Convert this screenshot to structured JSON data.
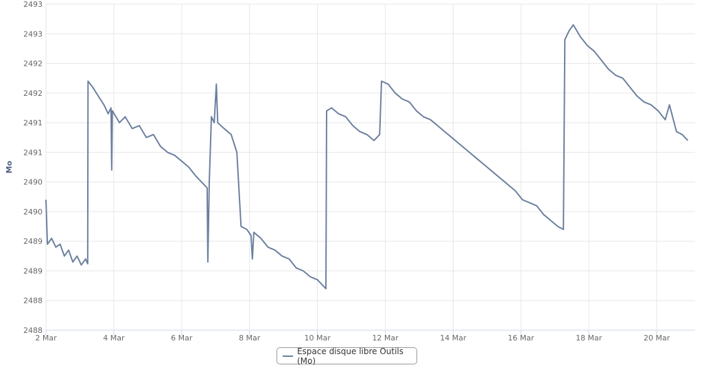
{
  "chart_data": {
    "type": "line",
    "title": "",
    "xlabel": "",
    "ylabel": "Mo",
    "ylim": [
      2488,
      2493.5
    ],
    "y_tick_values": [
      2488,
      2488.5,
      2489,
      2489.5,
      2490,
      2490.5,
      2491,
      2491.5,
      2492,
      2492.5,
      2493,
      2493.5
    ],
    "y_tick_labels": [
      "2488",
      "2488",
      "2489",
      "2489",
      "2490",
      "2490",
      "2491",
      "2491",
      "2492",
      "2492",
      "2493",
      "2493"
    ],
    "x_tick_labels": [
      "2 Mar",
      "4 Mar",
      "6 Mar",
      "8 Mar",
      "10 Mar",
      "12 Mar",
      "14 Mar",
      "16 Mar",
      "18 Mar",
      "20 Mar"
    ],
    "xlim": [
      "2 Mar 00:00",
      "21 Mar 02:30"
    ],
    "grid": true,
    "legend_position": "bottom-center",
    "series": [
      {
        "name": "Espace disque libre Outils (Mo)",
        "color": "#6b7f9e",
        "points": [
          [
            "2 Mar 00:00",
            2490.2
          ],
          [
            "2 Mar 01:00",
            2489.45
          ],
          [
            "2 Mar 04:00",
            2489.55
          ],
          [
            "2 Mar 07:00",
            2489.4
          ],
          [
            "2 Mar 10:00",
            2489.45
          ],
          [
            "2 Mar 13:00",
            2489.25
          ],
          [
            "2 Mar 16:00",
            2489.35
          ],
          [
            "2 Mar 19:00",
            2489.15
          ],
          [
            "2 Mar 22:00",
            2489.25
          ],
          [
            "3 Mar 01:00",
            2489.1
          ],
          [
            "3 Mar 04:00",
            2489.2
          ],
          [
            "3 Mar 05:30",
            2489.12
          ],
          [
            "3 Mar 05:45",
            2492.2
          ],
          [
            "3 Mar 09:00",
            2492.1
          ],
          [
            "3 Mar 13:00",
            2491.95
          ],
          [
            "3 Mar 17:00",
            2491.8
          ],
          [
            "3 Mar 20:00",
            2491.65
          ],
          [
            "3 Mar 22:00",
            2491.75
          ],
          [
            "3 Mar 22:30",
            2490.7
          ],
          [
            "3 Mar 23:00",
            2491.7
          ],
          [
            "4 Mar 04:00",
            2491.5
          ],
          [
            "4 Mar 08:00",
            2491.6
          ],
          [
            "4 Mar 13:00",
            2491.4
          ],
          [
            "4 Mar 18:00",
            2491.45
          ],
          [
            "4 Mar 23:00",
            2491.25
          ],
          [
            "5 Mar 04:00",
            2491.3
          ],
          [
            "5 Mar 09:00",
            2491.1
          ],
          [
            "5 Mar 14:00",
            2491.0
          ],
          [
            "5 Mar 19:00",
            2490.95
          ],
          [
            "6 Mar 00:00",
            2490.85
          ],
          [
            "6 Mar 05:00",
            2490.75
          ],
          [
            "6 Mar 10:00",
            2490.6
          ],
          [
            "6 Mar 14:00",
            2490.5
          ],
          [
            "6 Mar 18:00",
            2490.4
          ],
          [
            "6 Mar 18:30",
            2489.15
          ],
          [
            "6 Mar 19:30",
            2490.5
          ],
          [
            "6 Mar 21:00",
            2491.6
          ],
          [
            "6 Mar 23:00",
            2491.5
          ],
          [
            "7 Mar 00:30",
            2492.15
          ],
          [
            "7 Mar 01:30",
            2491.5
          ],
          [
            "7 Mar 06:00",
            2491.4
          ],
          [
            "7 Mar 11:00",
            2491.3
          ],
          [
            "7 Mar 15:00",
            2491.0
          ],
          [
            "7 Mar 18:00",
            2489.75
          ],
          [
            "7 Mar 22:00",
            2489.7
          ],
          [
            "8 Mar 01:00",
            2489.6
          ],
          [
            "8 Mar 02:00",
            2489.2
          ],
          [
            "8 Mar 03:00",
            2489.65
          ],
          [
            "8 Mar 08:00",
            2489.55
          ],
          [
            "8 Mar 13:00",
            2489.4
          ],
          [
            "8 Mar 18:00",
            2489.35
          ],
          [
            "8 Mar 23:00",
            2489.25
          ],
          [
            "9 Mar 04:00",
            2489.2
          ],
          [
            "9 Mar 09:00",
            2489.05
          ],
          [
            "9 Mar 14:00",
            2489.0
          ],
          [
            "9 Mar 19:00",
            2488.9
          ],
          [
            "10 Mar 00:00",
            2488.85
          ],
          [
            "10 Mar 04:00",
            2488.75
          ],
          [
            "10 Mar 06:00",
            2488.7
          ],
          [
            "10 Mar 06:30",
            2491.7
          ],
          [
            "10 Mar 10:00",
            2491.75
          ],
          [
            "10 Mar 15:00",
            2491.65
          ],
          [
            "10 Mar 20:00",
            2491.6
          ],
          [
            "11 Mar 01:00",
            2491.45
          ],
          [
            "11 Mar 06:00",
            2491.35
          ],
          [
            "11 Mar 11:00",
            2491.3
          ],
          [
            "11 Mar 16:00",
            2491.2
          ],
          [
            "11 Mar 20:00",
            2491.3
          ],
          [
            "11 Mar 21:20",
            2492.2
          ],
          [
            "12 Mar 02:00",
            2492.15
          ],
          [
            "12 Mar 07:00",
            2492.0
          ],
          [
            "12 Mar 12:00",
            2491.9
          ],
          [
            "12 Mar 17:00",
            2491.85
          ],
          [
            "12 Mar 22:00",
            2491.7
          ],
          [
            "13 Mar 03:00",
            2491.6
          ],
          [
            "13 Mar 08:00",
            2491.55
          ],
          [
            "13 Mar 13:00",
            2491.45
          ],
          [
            "13 Mar 18:00",
            2491.35
          ],
          [
            "13 Mar 23:00",
            2491.25
          ],
          [
            "14 Mar 04:00",
            2491.15
          ],
          [
            "14 Mar 09:00",
            2491.05
          ],
          [
            "14 Mar 14:00",
            2490.95
          ],
          [
            "14 Mar 19:00",
            2490.85
          ],
          [
            "15 Mar 00:00",
            2490.75
          ],
          [
            "15 Mar 05:00",
            2490.65
          ],
          [
            "15 Mar 10:00",
            2490.55
          ],
          [
            "15 Mar 15:00",
            2490.45
          ],
          [
            "15 Mar 20:00",
            2490.35
          ],
          [
            "16 Mar 01:00",
            2490.2
          ],
          [
            "16 Mar 06:00",
            2490.15
          ],
          [
            "16 Mar 11:00",
            2490.1
          ],
          [
            "16 Mar 16:00",
            2489.95
          ],
          [
            "16 Mar 21:00",
            2489.85
          ],
          [
            "17 Mar 02:00",
            2489.75
          ],
          [
            "17 Mar 06:00",
            2489.7
          ],
          [
            "17 Mar 07:00",
            2492.9
          ],
          [
            "17 Mar 10:00",
            2493.05
          ],
          [
            "17 Mar 13:00",
            2493.15
          ],
          [
            "17 Mar 18:00",
            2492.95
          ],
          [
            "17 Mar 23:00",
            2492.8
          ],
          [
            "18 Mar 04:00",
            2492.7
          ],
          [
            "18 Mar 09:00",
            2492.55
          ],
          [
            "18 Mar 14:00",
            2492.4
          ],
          [
            "18 Mar 19:00",
            2492.3
          ],
          [
            "19 Mar 00:00",
            2492.25
          ],
          [
            "19 Mar 05:00",
            2492.1
          ],
          [
            "19 Mar 10:00",
            2491.95
          ],
          [
            "19 Mar 15:00",
            2491.85
          ],
          [
            "19 Mar 20:00",
            2491.8
          ],
          [
            "20 Mar 01:00",
            2491.7
          ],
          [
            "20 Mar 06:00",
            2491.55
          ],
          [
            "20 Mar 09:00",
            2491.8
          ],
          [
            "20 Mar 14:00",
            2491.35
          ],
          [
            "20 Mar 18:00",
            2491.3
          ],
          [
            "20 Mar 22:00",
            2491.2
          ]
        ]
      }
    ]
  }
}
